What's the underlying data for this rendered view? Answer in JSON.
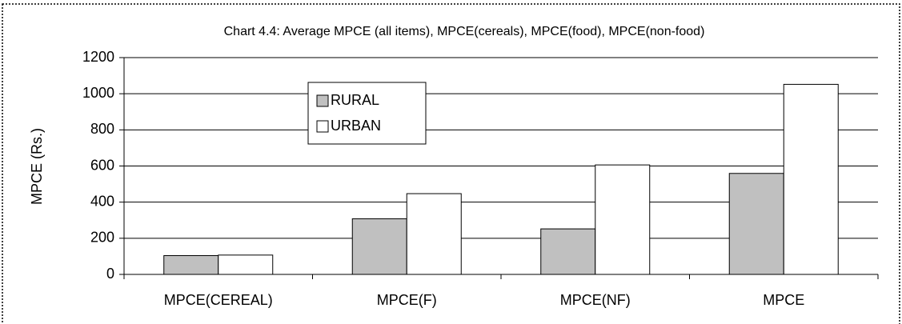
{
  "chart_data": {
    "type": "bar",
    "title": "Chart 4.4: Average MPCE (all items), MPCE(cereals), MPCE(food), MPCE(non-food)",
    "y_label": "MPCE (Rs.)",
    "categories": [
      "MPCE(CEREAL)",
      "MPCE(F)",
      "MPCE(NF)",
      "MPCE"
    ],
    "series": [
      {
        "name": "RURAL",
        "color": "#c0c0c0",
        "values": [
          104,
          308,
          252,
          559
        ]
      },
      {
        "name": "URBAN",
        "color": "#ffffff",
        "values": [
          107,
          447,
          606,
          1052
        ]
      }
    ],
    "ylim": [
      0,
      1200
    ],
    "yticks": [
      0,
      200,
      400,
      600,
      800,
      1000,
      1200
    ],
    "grid": true
  }
}
